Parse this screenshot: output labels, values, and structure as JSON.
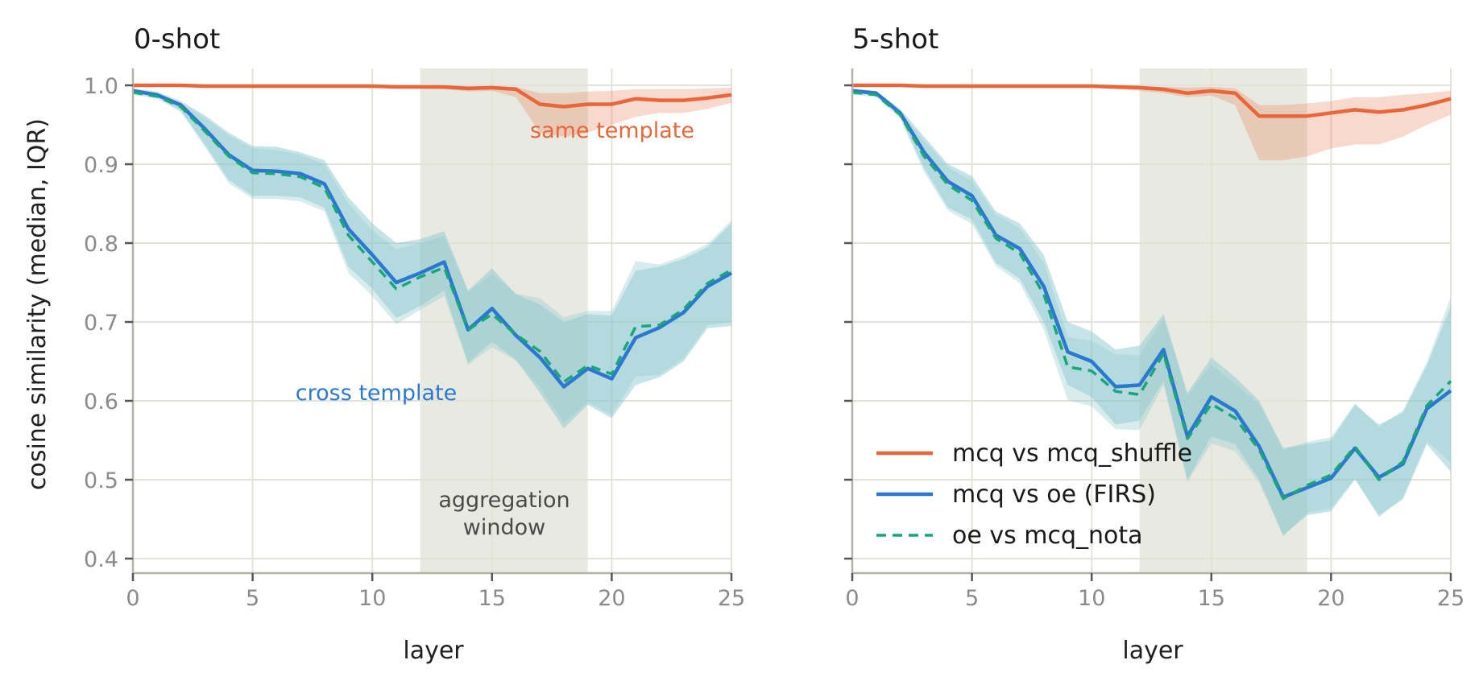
{
  "shared": {
    "ylabel": "cosine similarity (median, IQR)",
    "xlabel": "layer",
    "xlim": [
      0,
      25
    ],
    "ylim": [
      0.38,
      1.02
    ],
    "xticks": [
      0,
      5,
      10,
      15,
      20,
      25
    ],
    "yticks": [
      0.4,
      0.5,
      0.6,
      0.7,
      0.8,
      0.9,
      1.0
    ],
    "aggregation_window": [
      12,
      19
    ],
    "grid": true,
    "colors": {
      "same": "#e8673a",
      "cross": "#2b78d0",
      "nota": "#1aa67a",
      "band_cross": "#8ec9cf",
      "window": "#e8e9e1",
      "grid": "#e4e2d8",
      "axis": "#b4b2a8",
      "tick_label": "#8a8a8a"
    }
  },
  "legend": {
    "placement": "lower-left",
    "entries": [
      {
        "label": "mcq vs mcq_shuffle",
        "key": "same",
        "style": "solid"
      },
      {
        "label": "mcq vs oe (FIRS)",
        "key": "cross",
        "style": "solid"
      },
      {
        "label": "oe vs mcq_nota",
        "key": "nota",
        "style": "dashed"
      }
    ]
  },
  "chart_data": [
    {
      "type": "line",
      "title": "0-shot",
      "x": [
        0,
        1,
        2,
        3,
        4,
        5,
        6,
        7,
        8,
        9,
        10,
        11,
        12,
        13,
        14,
        15,
        16,
        17,
        18,
        19,
        20,
        21,
        22,
        23,
        24,
        25
      ],
      "series": [
        {
          "name": "mcq vs mcq_shuffle",
          "key": "same",
          "values": [
            1.0,
            1.0,
            1.0,
            0.999,
            0.999,
            0.999,
            0.999,
            0.999,
            0.999,
            0.999,
            0.999,
            0.998,
            0.998,
            0.998,
            0.996,
            0.997,
            0.995,
            0.976,
            0.973,
            0.976,
            0.976,
            0.983,
            0.981,
            0.981,
            0.984,
            0.988
          ],
          "q1": [
            0.999,
            0.999,
            0.998,
            0.998,
            0.997,
            0.997,
            0.997,
            0.997,
            0.997,
            0.997,
            0.997,
            0.996,
            0.996,
            0.995,
            0.992,
            0.993,
            0.985,
            0.94,
            0.935,
            0.94,
            0.95,
            0.96,
            0.965,
            0.965,
            0.97,
            0.978
          ],
          "q3": [
            1.0,
            1.0,
            1.0,
            1.0,
            1.0,
            1.0,
            1.0,
            1.0,
            1.0,
            1.0,
            1.0,
            1.0,
            1.0,
            1.0,
            0.999,
            0.999,
            0.998,
            0.99,
            0.99,
            0.992,
            0.993,
            0.995,
            0.995,
            0.995,
            0.996,
            0.997
          ]
        },
        {
          "name": "mcq vs oe (FIRS)",
          "key": "cross",
          "values": [
            0.993,
            0.988,
            0.975,
            0.945,
            0.912,
            0.892,
            0.891,
            0.888,
            0.875,
            0.818,
            0.785,
            0.75,
            0.762,
            0.776,
            0.69,
            0.717,
            0.683,
            0.655,
            0.618,
            0.641,
            0.628,
            0.68,
            0.693,
            0.712,
            0.745,
            0.762
          ],
          "q1": [
            0.99,
            0.985,
            0.968,
            0.925,
            0.88,
            0.86,
            0.86,
            0.858,
            0.845,
            0.77,
            0.742,
            0.705,
            0.72,
            0.74,
            0.648,
            0.675,
            0.652,
            0.61,
            0.565,
            0.595,
            0.578,
            0.62,
            0.63,
            0.65,
            0.692,
            0.695
          ],
          "q3": [
            0.996,
            0.992,
            0.98,
            0.962,
            0.94,
            0.923,
            0.922,
            0.915,
            0.905,
            0.858,
            0.825,
            0.8,
            0.805,
            0.815,
            0.74,
            0.768,
            0.735,
            0.722,
            0.7,
            0.71,
            0.708,
            0.765,
            0.77,
            0.78,
            0.795,
            0.825
          ]
        },
        {
          "name": "oe vs mcq_nota",
          "key": "nota",
          "values": [
            0.991,
            0.986,
            0.973,
            0.942,
            0.91,
            0.889,
            0.888,
            0.884,
            0.87,
            0.81,
            0.776,
            0.742,
            0.757,
            0.769,
            0.69,
            0.71,
            0.684,
            0.663,
            0.624,
            0.645,
            0.634,
            0.694,
            0.696,
            0.716,
            0.749,
            0.766
          ],
          "q1": [
            0.988,
            0.983,
            0.966,
            0.922,
            0.876,
            0.856,
            0.856,
            0.853,
            0.84,
            0.762,
            0.733,
            0.697,
            0.715,
            0.733,
            0.646,
            0.668,
            0.651,
            0.617,
            0.572,
            0.598,
            0.582,
            0.631,
            0.633,
            0.654,
            0.696,
            0.7
          ],
          "q3": [
            0.994,
            0.99,
            0.978,
            0.959,
            0.937,
            0.92,
            0.918,
            0.912,
            0.9,
            0.85,
            0.816,
            0.792,
            0.8,
            0.809,
            0.738,
            0.761,
            0.736,
            0.73,
            0.706,
            0.714,
            0.714,
            0.777,
            0.773,
            0.784,
            0.799,
            0.829
          ]
        }
      ]
    },
    {
      "type": "line",
      "title": "5-shot",
      "x": [
        0,
        1,
        2,
        3,
        4,
        5,
        6,
        7,
        8,
        9,
        10,
        11,
        12,
        13,
        14,
        15,
        16,
        17,
        18,
        19,
        20,
        21,
        22,
        23,
        24,
        25
      ],
      "series": [
        {
          "name": "mcq vs mcq_shuffle",
          "key": "same",
          "values": [
            1.0,
            1.0,
            1.0,
            0.999,
            0.999,
            0.999,
            0.999,
            0.999,
            0.999,
            0.999,
            0.999,
            0.998,
            0.997,
            0.995,
            0.99,
            0.993,
            0.99,
            0.961,
            0.961,
            0.961,
            0.965,
            0.969,
            0.966,
            0.969,
            0.975,
            0.983
          ],
          "q1": [
            0.999,
            0.999,
            0.998,
            0.998,
            0.997,
            0.997,
            0.997,
            0.997,
            0.997,
            0.997,
            0.997,
            0.995,
            0.993,
            0.99,
            0.985,
            0.987,
            0.975,
            0.905,
            0.905,
            0.91,
            0.92,
            0.925,
            0.925,
            0.935,
            0.95,
            0.963
          ],
          "q3": [
            1.0,
            1.0,
            1.0,
            1.0,
            1.0,
            1.0,
            1.0,
            1.0,
            1.0,
            1.0,
            1.0,
            1.0,
            0.999,
            0.998,
            0.997,
            0.998,
            0.996,
            0.975,
            0.975,
            0.977,
            0.98,
            0.985,
            0.985,
            0.988,
            0.99,
            0.993
          ]
        },
        {
          "name": "mcq vs oe (FIRS)",
          "key": "cross",
          "values": [
            0.993,
            0.99,
            0.965,
            0.915,
            0.878,
            0.86,
            0.81,
            0.793,
            0.745,
            0.662,
            0.65,
            0.618,
            0.62,
            0.665,
            0.555,
            0.605,
            0.587,
            0.542,
            0.478,
            0.49,
            0.502,
            0.54,
            0.503,
            0.52,
            0.59,
            0.613
          ],
          "q1": [
            0.99,
            0.987,
            0.96,
            0.895,
            0.845,
            0.83,
            0.775,
            0.755,
            0.7,
            0.62,
            0.605,
            0.57,
            0.575,
            0.625,
            0.5,
            0.555,
            0.545,
            0.5,
            0.43,
            0.455,
            0.46,
            0.5,
            0.455,
            0.475,
            0.545,
            0.51
          ],
          "q3": [
            0.996,
            0.993,
            0.97,
            0.935,
            0.9,
            0.885,
            0.84,
            0.825,
            0.785,
            0.7,
            0.688,
            0.665,
            0.67,
            0.71,
            0.61,
            0.655,
            0.63,
            0.6,
            0.54,
            0.545,
            0.55,
            0.595,
            0.57,
            0.585,
            0.645,
            0.72
          ]
        },
        {
          "name": "oe vs mcq_nota",
          "key": "nota",
          "values": [
            0.991,
            0.988,
            0.963,
            0.91,
            0.874,
            0.854,
            0.806,
            0.787,
            0.735,
            0.643,
            0.638,
            0.612,
            0.608,
            0.66,
            0.552,
            0.596,
            0.578,
            0.538,
            0.476,
            0.493,
            0.506,
            0.542,
            0.5,
            0.523,
            0.594,
            0.625
          ],
          "q1": [
            0.988,
            0.985,
            0.958,
            0.89,
            0.841,
            0.824,
            0.771,
            0.749,
            0.69,
            0.601,
            0.593,
            0.564,
            0.563,
            0.62,
            0.497,
            0.546,
            0.536,
            0.496,
            0.428,
            0.458,
            0.464,
            0.502,
            0.452,
            0.478,
            0.549,
            0.522
          ],
          "q3": [
            0.994,
            0.991,
            0.968,
            0.93,
            0.896,
            0.879,
            0.836,
            0.819,
            0.775,
            0.681,
            0.676,
            0.659,
            0.658,
            0.705,
            0.607,
            0.646,
            0.621,
            0.596,
            0.538,
            0.548,
            0.554,
            0.597,
            0.567,
            0.588,
            0.649,
            0.732
          ]
        }
      ]
    }
  ],
  "annotations": {
    "same_template": "same template",
    "cross_template": "cross template",
    "aggregation_line1": "aggregation",
    "aggregation_line2": "window"
  }
}
